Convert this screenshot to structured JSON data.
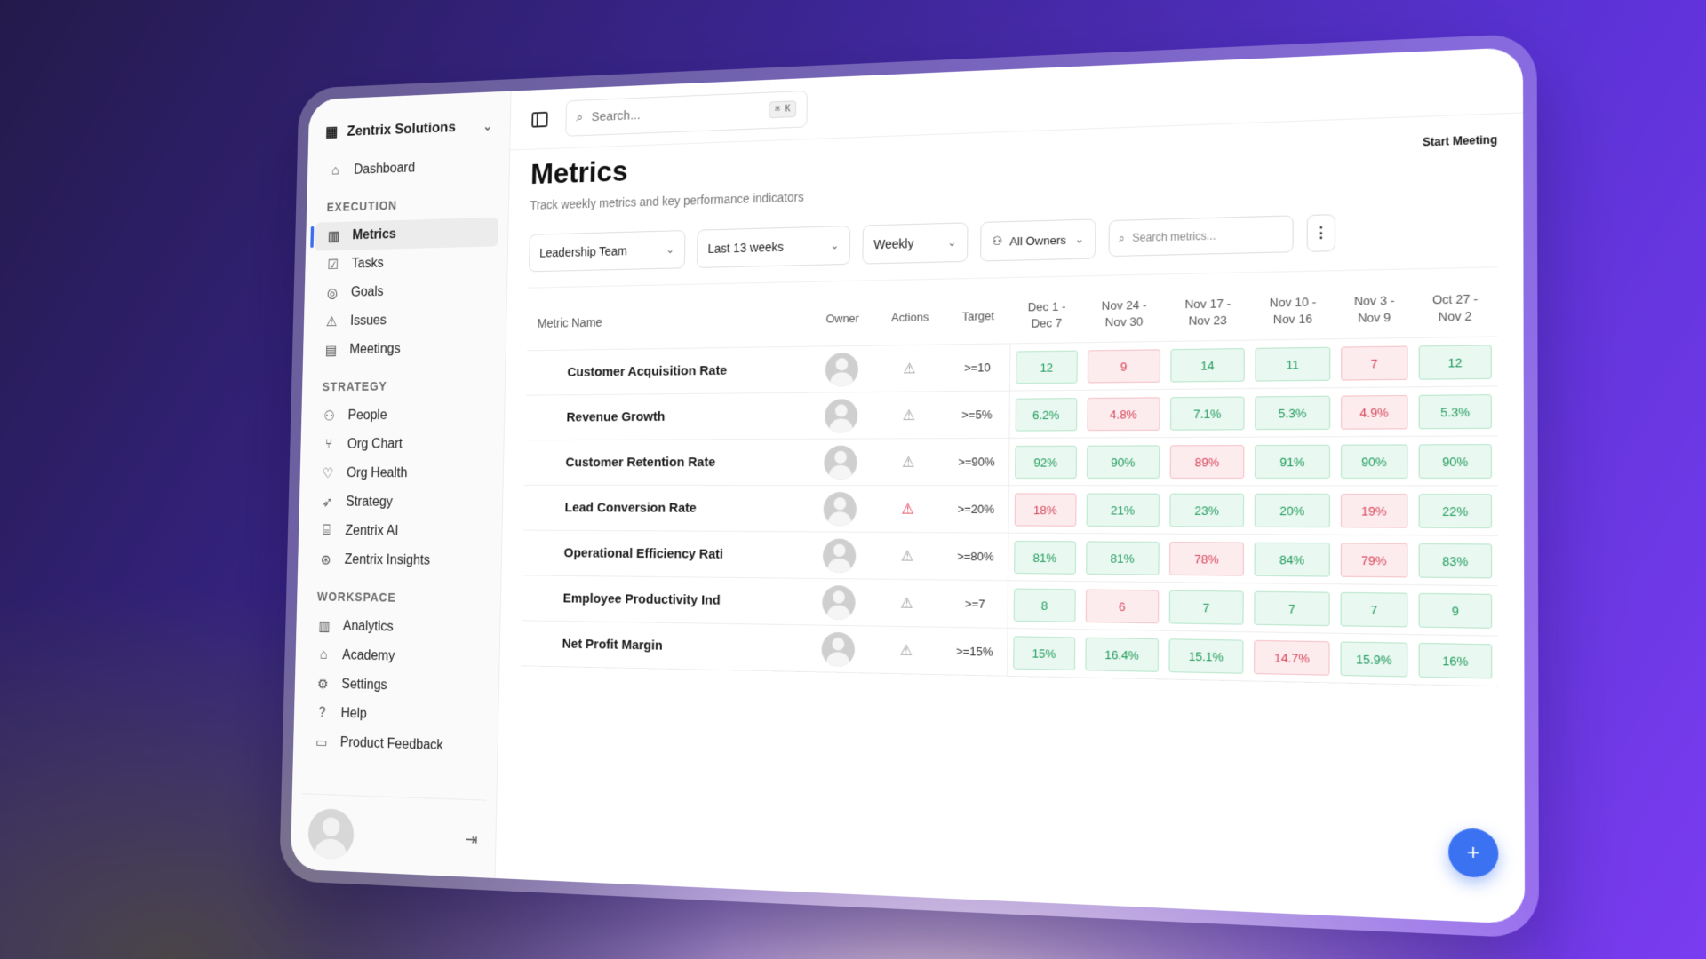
{
  "org": {
    "name": "Zentrix Solutions",
    "icon": "building-icon"
  },
  "nav": {
    "top": [
      {
        "label": "Dashboard",
        "icon": "home-icon"
      }
    ],
    "execution_title": "EXECUTION",
    "execution": [
      {
        "label": "Metrics",
        "icon": "bar-chart-icon",
        "active": true
      },
      {
        "label": "Tasks",
        "icon": "checkbox-icon"
      },
      {
        "label": "Goals",
        "icon": "target-icon"
      },
      {
        "label": "Issues",
        "icon": "warning-icon"
      },
      {
        "label": "Meetings",
        "icon": "calendar-icon"
      }
    ],
    "strategy_title": "STRATEGY",
    "strategy": [
      {
        "label": "People",
        "icon": "users-icon"
      },
      {
        "label": "Org Chart",
        "icon": "branch-icon"
      },
      {
        "label": "Org Health",
        "icon": "heart-pulse-icon"
      },
      {
        "label": "Strategy",
        "icon": "rocket-icon"
      },
      {
        "label": "Zentrix AI",
        "icon": "bot-icon"
      },
      {
        "label": "Zentrix Insights",
        "icon": "brain-icon"
      }
    ],
    "workspace_title": "WORKSPACE",
    "workspace": [
      {
        "label": "Analytics",
        "icon": "bar-chart-icon"
      },
      {
        "label": "Academy",
        "icon": "graduation-cap-icon"
      },
      {
        "label": "Settings",
        "icon": "gear-icon"
      },
      {
        "label": "Help",
        "icon": "help-circle-icon"
      },
      {
        "label": "Product Feedback",
        "icon": "message-icon"
      }
    ]
  },
  "search": {
    "placeholder": "Search...",
    "shortcut": "⌘ K"
  },
  "page": {
    "title": "Metrics",
    "subtitle": "Track weekly metrics and key performance indicators",
    "start_meeting": "Start Meeting"
  },
  "filters": {
    "team": "Leadership Team",
    "range": "Last 13 weeks",
    "frequency": "Weekly",
    "owners": "All Owners",
    "search_placeholder": "Search metrics..."
  },
  "table": {
    "headers": {
      "name": "Metric Name",
      "owner": "Owner",
      "actions": "Actions",
      "target": "Target",
      "weeks": [
        [
          "Dec 1 -",
          "Dec 7"
        ],
        [
          "Nov 24 -",
          "Nov 30"
        ],
        [
          "Nov 17 -",
          "Nov 23"
        ],
        [
          "Nov 10 -",
          "Nov 16"
        ],
        [
          "Nov 3 -",
          "Nov 9"
        ],
        [
          "Oct 27 -",
          "Nov 2"
        ]
      ]
    },
    "rows": [
      {
        "name": "Customer Acquisition Rate",
        "target": ">=10",
        "alert": false,
        "values": [
          "12",
          "9",
          "14",
          "11",
          "7",
          "12"
        ],
        "status": [
          "good",
          "bad",
          "good",
          "good",
          "bad",
          "good"
        ]
      },
      {
        "name": "Revenue Growth",
        "target": ">=5%",
        "alert": false,
        "values": [
          "6.2%",
          "4.8%",
          "7.1%",
          "5.3%",
          "4.9%",
          "5.3%"
        ],
        "status": [
          "good",
          "bad",
          "good",
          "good",
          "bad",
          "good"
        ]
      },
      {
        "name": "Customer Retention Rate",
        "target": ">=90%",
        "alert": false,
        "values": [
          "92%",
          "90%",
          "89%",
          "91%",
          "90%",
          "90%"
        ],
        "status": [
          "good",
          "good",
          "bad",
          "good",
          "good",
          "good"
        ]
      },
      {
        "name": "Lead Conversion Rate",
        "target": ">=20%",
        "alert": true,
        "values": [
          "18%",
          "21%",
          "23%",
          "20%",
          "19%",
          "22%"
        ],
        "status": [
          "bad",
          "good",
          "good",
          "good",
          "bad",
          "good"
        ]
      },
      {
        "name": "Operational Efficiency Rati",
        "target": ">=80%",
        "alert": false,
        "values": [
          "81%",
          "81%",
          "78%",
          "84%",
          "79%",
          "83%"
        ],
        "status": [
          "good",
          "good",
          "bad",
          "good",
          "bad",
          "good"
        ]
      },
      {
        "name": "Employee Productivity Ind",
        "target": ">=7",
        "alert": false,
        "values": [
          "8",
          "6",
          "7",
          "7",
          "7",
          "9"
        ],
        "status": [
          "good",
          "bad",
          "good",
          "good",
          "good",
          "good"
        ]
      },
      {
        "name": "Net Profit Margin",
        "target": ">=15%",
        "alert": false,
        "values": [
          "15%",
          "16.4%",
          "15.1%",
          "14.7%",
          "15.9%",
          "16%"
        ],
        "status": [
          "good",
          "good",
          "good",
          "bad",
          "good",
          "good"
        ]
      }
    ]
  },
  "fab": "+",
  "colors": {
    "accent": "#3b72f2",
    "good": "#1f9a5c",
    "bad": "#d6455a"
  }
}
